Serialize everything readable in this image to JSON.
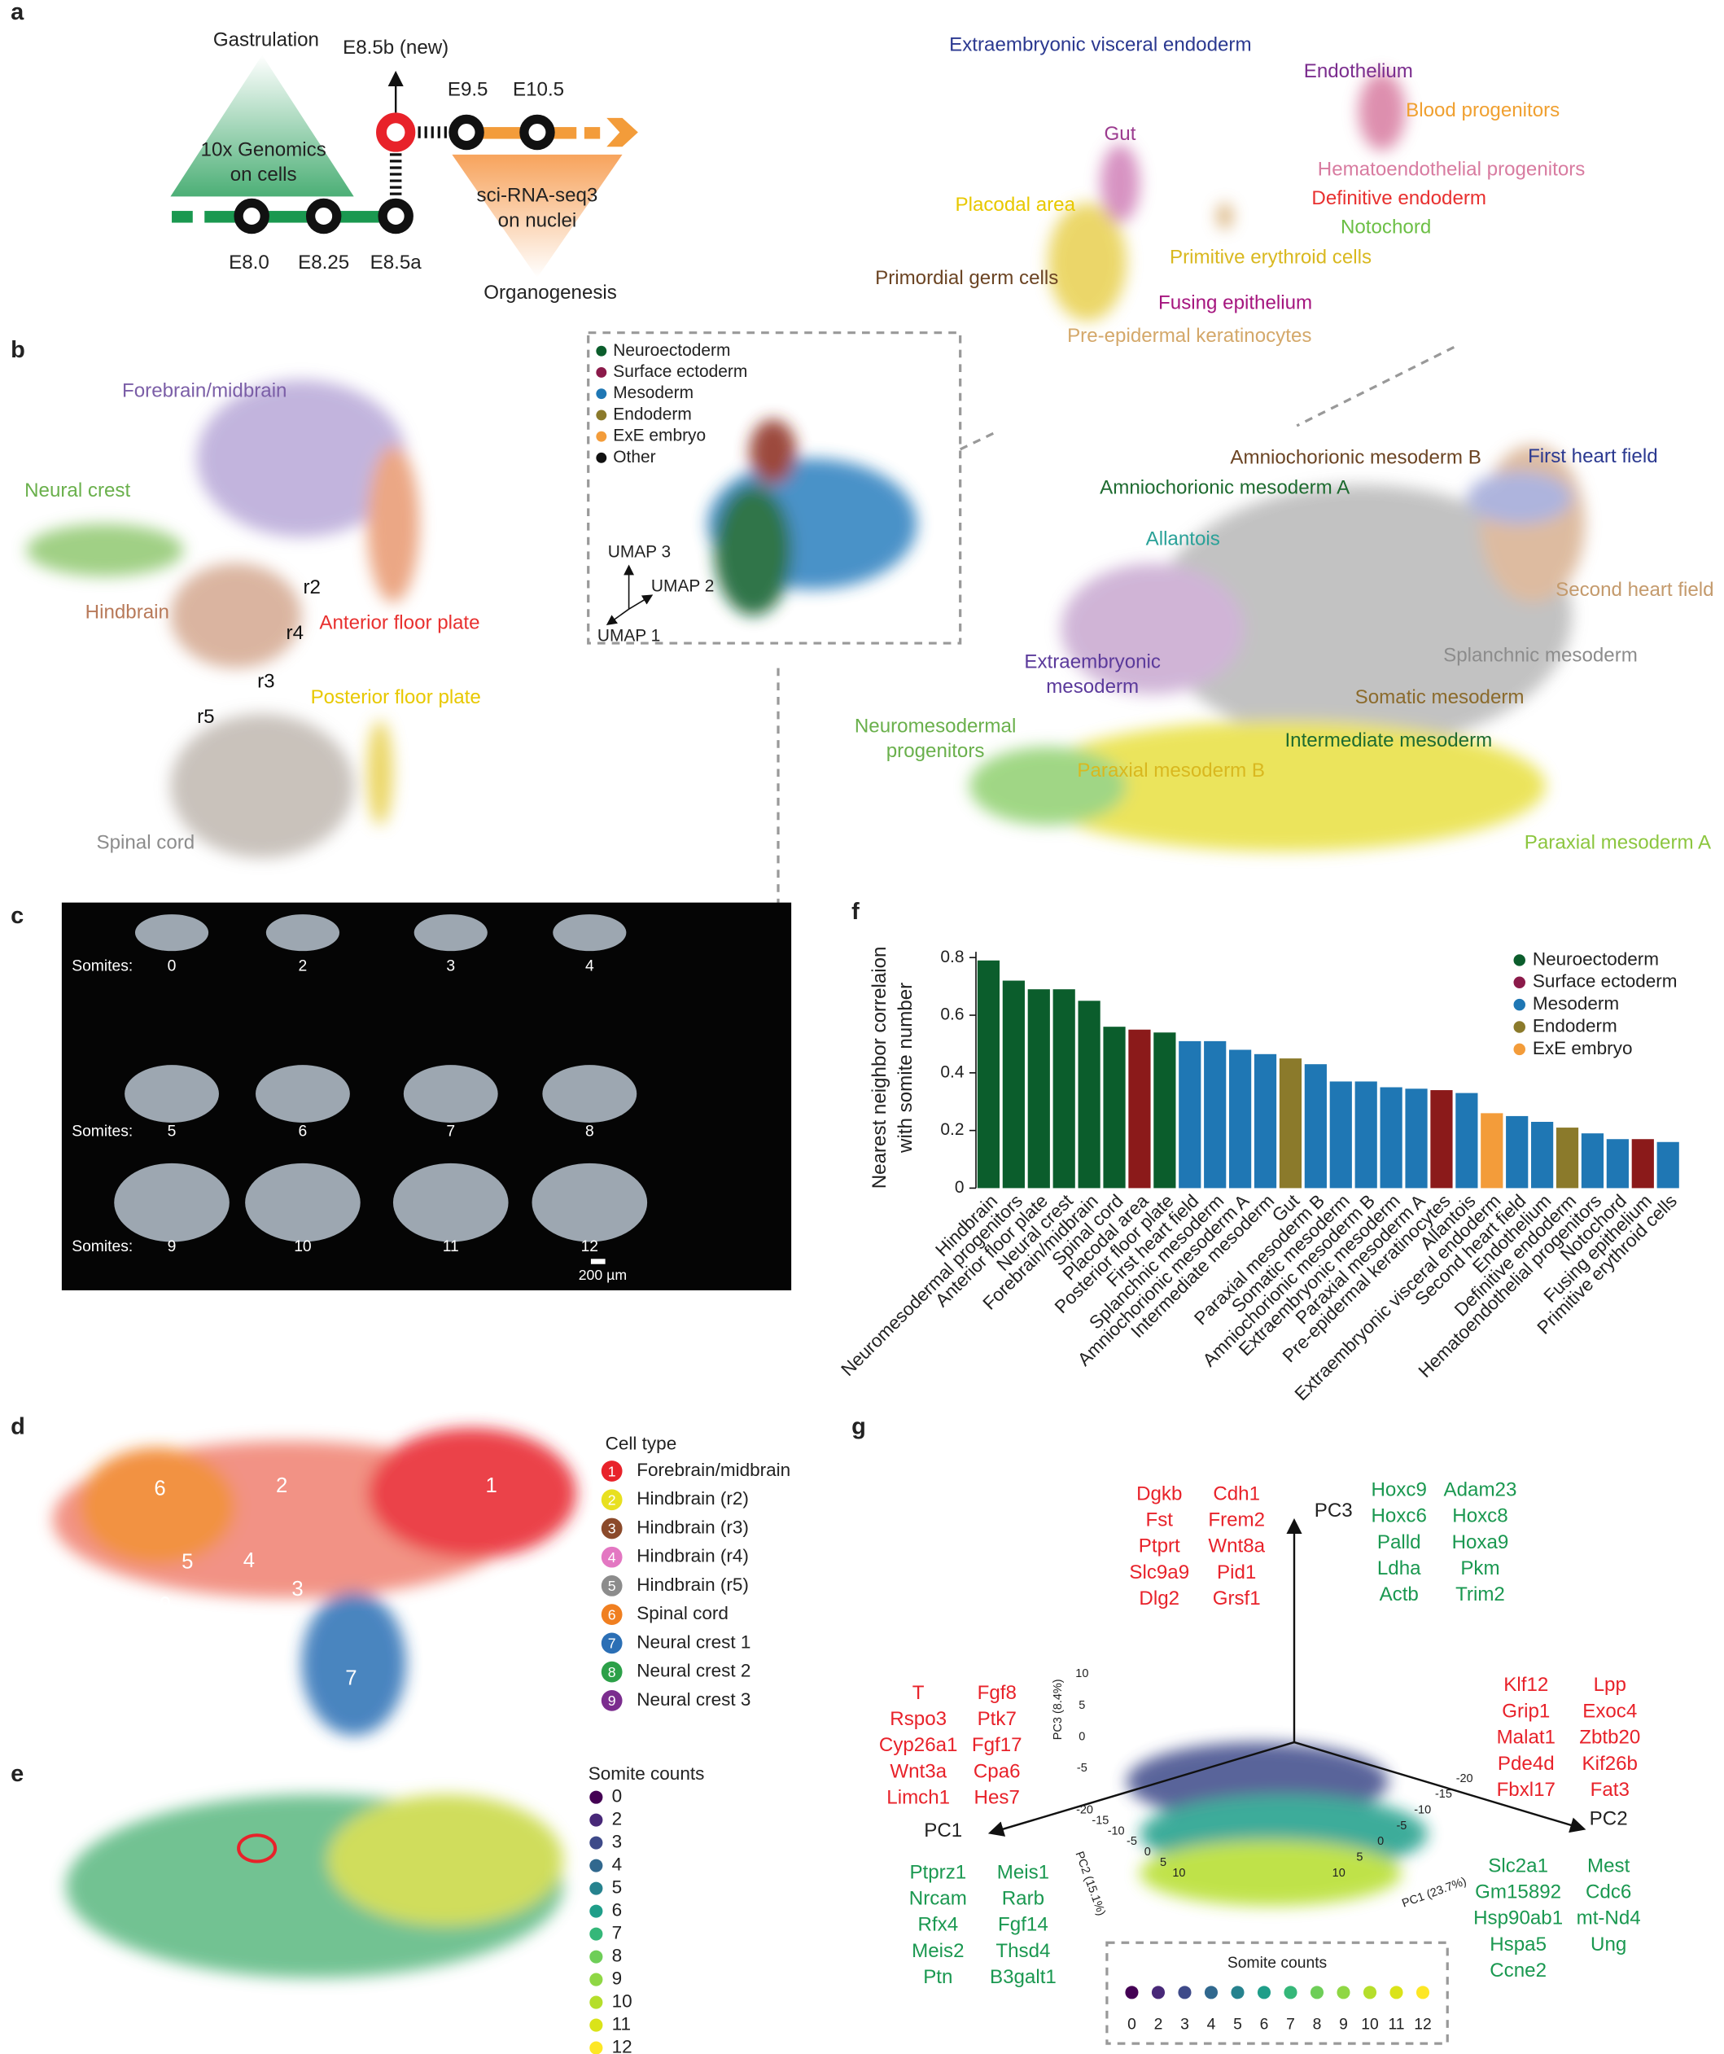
{
  "panel_letters": [
    "a",
    "b",
    "c",
    "d",
    "e",
    "f",
    "g"
  ],
  "panel_a": {
    "gastrulation": "Gastrulation",
    "tech1": [
      "10x Genomics",
      "on cells"
    ],
    "new_stage": "E8.5b (new)",
    "tech2": [
      "sci-RNA-seq3",
      "on nuclei"
    ],
    "organogenesis": "Organogenesis",
    "stages": [
      "E8.0",
      "E8.25",
      "E8.5a",
      "E9.5",
      "E10.5"
    ],
    "labels": [
      {
        "text": "Extraembryonic visceral endoderm",
        "color": "#2b3990"
      },
      {
        "text": "Endothelium",
        "color": "#7b2d8e"
      },
      {
        "text": "Blood progenitors",
        "color": "#f0a030"
      },
      {
        "text": "Gut",
        "color": "#9b3b8f"
      },
      {
        "text": "Hematoendothelial progenitors",
        "color": "#d87ba0"
      },
      {
        "text": "Definitive endoderm",
        "color": "#e8302f"
      },
      {
        "text": "Placodal area",
        "color": "#e8c800"
      },
      {
        "text": "Notochord",
        "color": "#6cbf45"
      },
      {
        "text": "Primitive erythroid cells",
        "color": "#d9b81f"
      },
      {
        "text": "Primordial germ cells",
        "color": "#6b4423"
      },
      {
        "text": "Fusing epithelium",
        "color": "#a5157e"
      },
      {
        "text": "Pre-epidermal keratinocytes",
        "color": "#d4a86a"
      }
    ]
  },
  "panel_b": {
    "left_labels": [
      {
        "text": [
          "Forebrain/midbrain"
        ],
        "color": "#7b5ea7"
      },
      {
        "text": [
          "Neural crest"
        ],
        "color": "#6ab04c"
      },
      {
        "text": [
          "Hindbrain"
        ],
        "color": "#b87a5a"
      },
      {
        "text": [
          "r2"
        ],
        "color": "#111111"
      },
      {
        "text": [
          "r4"
        ],
        "color": "#111111"
      },
      {
        "text": [
          "r3"
        ],
        "color": "#111111"
      },
      {
        "text": [
          "r5"
        ],
        "color": "#111111"
      },
      {
        "text": [
          "Anterior floor plate"
        ],
        "color": "#e8302f"
      },
      {
        "text": [
          "Posterior floor plate"
        ],
        "color": "#e8c800"
      },
      {
        "text": [
          "Spinal cord"
        ],
        "color": "#8c8c8c"
      }
    ],
    "legend": [
      {
        "name": "Neuroectoderm",
        "color": "#0b5d2c"
      },
      {
        "name": "Surface ectoderm",
        "color": "#8b1a4a"
      },
      {
        "name": "Mesoderm",
        "color": "#1f77b4"
      },
      {
        "name": "Endoderm",
        "color": "#8b7a2b"
      },
      {
        "name": "ExE embryo",
        "color": "#f39c3a"
      },
      {
        "name": "Other",
        "color": "#111111"
      }
    ],
    "axes": [
      "UMAP 3",
      "UMAP 2",
      "UMAP 1"
    ],
    "right_labels": [
      {
        "text": [
          "Amniochorionic mesoderm B"
        ],
        "color": "#6b4423"
      },
      {
        "text": [
          "First heart field"
        ],
        "color": "#2b3990"
      },
      {
        "text": [
          "Amniochorionic mesoderm A"
        ],
        "color": "#1e6b30"
      },
      {
        "text": [
          "Allantois"
        ],
        "color": "#2aa198"
      },
      {
        "text": [
          "Second heart field"
        ],
        "color": "#c49a6c"
      },
      {
        "text": [
          "Splanchnic mesoderm"
        ],
        "color": "#8c8c8c"
      },
      {
        "text": [
          "Extraembryonic",
          "mesoderm"
        ],
        "color": "#5b3a9b"
      },
      {
        "text": [
          "Somatic mesoderm"
        ],
        "color": "#8b6a2b"
      },
      {
        "text": [
          "Neuromesodermal",
          "progenitors"
        ],
        "color": "#6ab04c"
      },
      {
        "text": [
          "Intermediate mesoderm"
        ],
        "color": "#1e6b30"
      },
      {
        "text": [
          "Paraxial mesoderm B"
        ],
        "color": "#d9b81f"
      },
      {
        "text": [
          "Paraxial mesoderm A"
        ],
        "color": "#8cc63f"
      }
    ]
  },
  "panel_c": {
    "somites_label": "Somites:",
    "somites": [
      0,
      2,
      3,
      4,
      5,
      6,
      7,
      8,
      9,
      10,
      11,
      12
    ],
    "scale": "200 µm"
  },
  "panel_d": {
    "title": "Cell type",
    "cell_types": [
      {
        "id": 1,
        "name": "Forebrain/midbrain",
        "color": "#e8222a"
      },
      {
        "id": 2,
        "name": "Hindbrain (r2)",
        "color": "#e8e020"
      },
      {
        "id": 3,
        "name": "Hindbrain (r3)",
        "color": "#8b4a2b"
      },
      {
        "id": 4,
        "name": "Hindbrain (r4)",
        "color": "#e377c2"
      },
      {
        "id": 5,
        "name": "Hindbrain (r5)",
        "color": "#8c8c8c"
      },
      {
        "id": 6,
        "name": "Spinal cord",
        "color": "#f07f20"
      },
      {
        "id": 7,
        "name": "Neural crest 1",
        "color": "#2b6fb5"
      },
      {
        "id": 8,
        "name": "Neural crest 2",
        "color": "#2ca048"
      },
      {
        "id": 9,
        "name": "Neural crest 3",
        "color": "#7b2d8e"
      }
    ]
  },
  "panel_e": {
    "title": "Somite counts",
    "counts": [
      0,
      2,
      3,
      4,
      5,
      6,
      7,
      8,
      9,
      10,
      11,
      12
    ],
    "colors": [
      "#440154",
      "#482878",
      "#3e4a89",
      "#31688e",
      "#26828e",
      "#1f9e89",
      "#35b779",
      "#6ece58",
      "#8fd744",
      "#b5de2b",
      "#dae319",
      "#fde725"
    ]
  },
  "panel_g": {
    "axes": {
      "pc1": "PC1",
      "pc2": "PC2",
      "pc3": "PC3",
      "pc1_title": "PC1 (23.7%)",
      "pc2_title": "PC2 (15.1%)",
      "pc3_title": "PC3 (8.4%)",
      "pc3_ticks": [
        10,
        5,
        0,
        -5
      ],
      "pc1_ticks": [
        10,
        5,
        0,
        -5,
        -10,
        -15,
        -20
      ],
      "pc2_ticks": [
        -20,
        -15,
        -10,
        -5,
        0,
        5,
        10
      ]
    },
    "top_red": [
      [
        "Dgkb",
        "Fst",
        "Ptprt",
        "Slc9a9",
        "Dlg2"
      ],
      [
        "Cdh1",
        "Frem2",
        "Wnt8a",
        "Pid1",
        "Grsf1"
      ]
    ],
    "top_green": [
      [
        "Hoxc9",
        "Hoxc6",
        "Palld",
        "Ldha",
        "Actb"
      ],
      [
        "Adam23",
        "Hoxc8",
        "Hoxa9",
        "Pkm",
        "Trim2"
      ]
    ],
    "left_red": [
      [
        "T",
        "Rspo3",
        "Cyp26a1",
        "Wnt3a",
        "Limch1"
      ],
      [
        "Fgf8",
        "Ptk7",
        "Fgf17",
        "Cpa6",
        "Hes7"
      ]
    ],
    "right_red": [
      [
        "Klf12",
        "Grip1",
        "Malat1",
        "Pde4d",
        "Fbxl17"
      ],
      [
        "Lpp",
        "Exoc4",
        "Zbtb20",
        "Kif26b",
        "Fat3"
      ]
    ],
    "bottom_left_green": [
      [
        "Ptprz1",
        "Nrcam",
        "Rfx4",
        "Meis2",
        "Ptn"
      ],
      [
        "Meis1",
        "Rarb",
        "Fgf14",
        "Thsd4",
        "B3galt1"
      ]
    ],
    "bottom_right_green": [
      [
        "Slc2a1",
        "Gm15892",
        "Hsp90ab1",
        "Hspa5",
        "Ccne2"
      ],
      [
        "Mest",
        "Cdc6",
        "mt-Nd4",
        "Ung"
      ]
    ],
    "legend": {
      "title": "Somite counts",
      "counts": [
        0,
        2,
        3,
        4,
        5,
        6,
        7,
        8,
        9,
        10,
        11,
        12
      ]
    }
  },
  "chart_data": {
    "type": "bar",
    "ylabel": [
      "Nearest neighbor correlaion",
      "with somite number"
    ],
    "categories": [
      "Hindbrain",
      "Neuromesodermal progenitors",
      "Anterior floor plate",
      "Neural crest",
      "Forebrain/midbrain",
      "Spinal cord",
      "Placodal area",
      "Posterior floor plate",
      "First heart field",
      "Splanchnic mesoderm",
      "Amniochorionic mesoderm A",
      "Intermediate mesoderm",
      "Gut",
      "Paraxial mesoderm B",
      "Somatic mesoderm",
      "Amniochorionic mesoderm B",
      "Extraembryonic mesoderm",
      "Paraxial mesoderm A",
      "Pre-epidermal keratinocytes",
      "Allantois",
      "Extraembryonic visceral endoderm",
      "Second heart field",
      "Endothelium",
      "Definitive endoderm",
      "Hematoendothelial progenitors",
      "Notochord",
      "Fusing epithelium",
      "Primitive erythroid cells"
    ],
    "values": [
      0.79,
      0.72,
      0.69,
      0.69,
      0.65,
      0.56,
      0.55,
      0.54,
      0.51,
      0.51,
      0.48,
      0.465,
      0.45,
      0.43,
      0.37,
      0.37,
      0.35,
      0.345,
      0.34,
      0.33,
      0.26,
      0.25,
      0.23,
      0.21,
      0.19,
      0.17,
      0.17,
      0.16
    ],
    "colors": [
      "#0b5d2c",
      "#0b5d2c",
      "#0b5d2c",
      "#0b5d2c",
      "#0b5d2c",
      "#0b5d2c",
      "#8b1a1a",
      "#0b5d2c",
      "#1f77b4",
      "#1f77b4",
      "#1f77b4",
      "#1f77b4",
      "#8b7a2b",
      "#1f77b4",
      "#1f77b4",
      "#1f77b4",
      "#1f77b4",
      "#1f77b4",
      "#8b1a1a",
      "#1f77b4",
      "#f39c3a",
      "#1f77b4",
      "#1f77b4",
      "#8b7a2b",
      "#1f77b4",
      "#1f77b4",
      "#8b1a1a",
      "#1f77b4"
    ],
    "legend": [
      {
        "name": "Neuroectoderm",
        "color": "#0b5d2c"
      },
      {
        "name": "Surface ectoderm",
        "color": "#8b1a4a"
      },
      {
        "name": "Mesoderm",
        "color": "#1f77b4"
      },
      {
        "name": "Endoderm",
        "color": "#8b7a2b"
      },
      {
        "name": "ExE embryo",
        "color": "#f39c3a"
      }
    ],
    "ylim": [
      0,
      0.82
    ],
    "yticks": [
      0,
      0.2,
      0.4,
      0.6,
      0.8
    ]
  }
}
